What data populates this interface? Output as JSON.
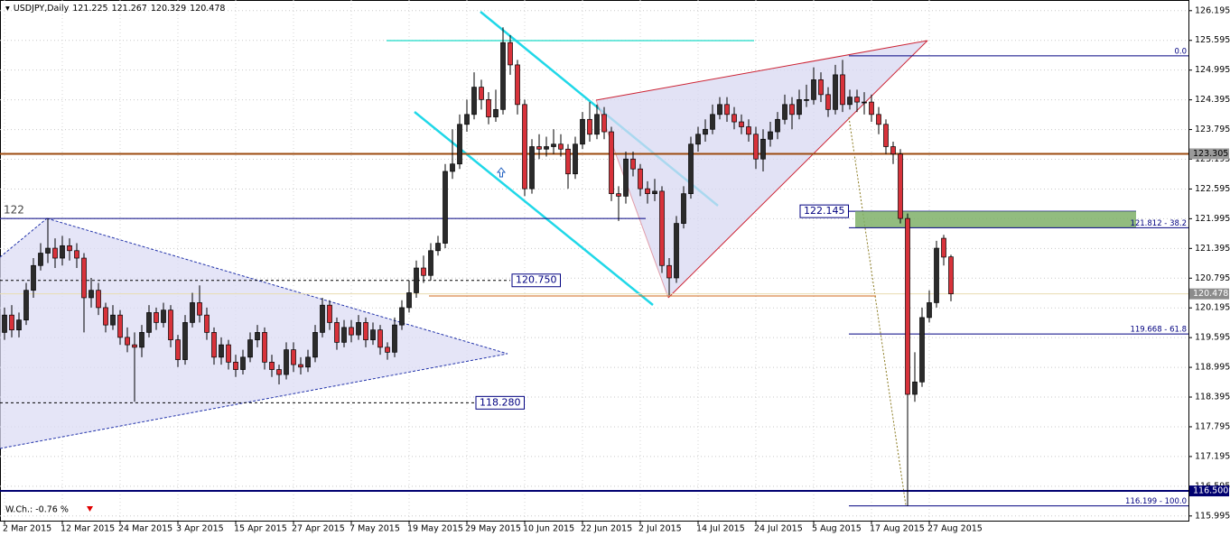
{
  "chart_data": {
    "type": "candlestick",
    "title": "USDJPY,Daily",
    "change_label": "W.Ch.: -0.76 %",
    "categories": [
      "2 Mar 2015",
      null,
      null,
      null,
      null,
      null,
      null,
      null,
      "12 Mar 2015",
      null,
      null,
      null,
      null,
      null,
      null,
      null,
      "24 Mar 2015",
      null,
      null,
      null,
      null,
      null,
      null,
      null,
      "3 Apr 2015",
      null,
      null,
      null,
      null,
      null,
      null,
      null,
      "15 Apr 2015",
      null,
      null,
      null,
      null,
      null,
      null,
      null,
      "27 Apr 2015",
      null,
      null,
      null,
      null,
      null,
      null,
      null,
      "7 May 2015",
      null,
      null,
      null,
      null,
      null,
      null,
      null,
      "19 May 2015",
      null,
      null,
      null,
      null,
      null,
      null,
      null,
      "29 May 2015",
      null,
      null,
      null,
      null,
      null,
      null,
      null,
      "10 Jun 2015",
      null,
      null,
      null,
      null,
      null,
      null,
      null,
      "22 Jun 2015",
      null,
      null,
      null,
      null,
      null,
      null,
      null,
      "2 Jul 2015",
      null,
      null,
      null,
      null,
      null,
      null,
      null,
      "14 Jul 2015",
      null,
      null,
      null,
      null,
      null,
      null,
      null,
      "24 Jul 2015",
      null,
      null,
      null,
      null,
      null,
      null,
      null,
      "5 Aug 2015",
      null,
      null,
      null,
      null,
      null,
      null,
      null,
      "17 Aug 2015",
      null,
      null,
      null,
      null,
      null,
      null,
      null,
      "27 Aug 2015",
      null,
      null,
      null
    ],
    "open": [
      119.7,
      120.05,
      119.75,
      119.95,
      120.55,
      121.05,
      121.3,
      121.4,
      121.2,
      121.45,
      121.35,
      121.2,
      120.4,
      120.55,
      120.2,
      119.85,
      120.05,
      119.6,
      119.45,
      119.4,
      119.7,
      120.1,
      119.9,
      120.15,
      119.55,
      119.15,
      119.9,
      120.3,
      120.05,
      119.7,
      119.2,
      119.45,
      119.1,
      118.95,
      119.2,
      119.55,
      119.7,
      119.1,
      118.95,
      118.85,
      119.35,
      119.05,
      119.0,
      119.2,
      119.7,
      120.25,
      119.9,
      119.5,
      119.8,
      119.65,
      119.9,
      119.55,
      119.75,
      119.4,
      119.3,
      119.85,
      120.2,
      120.5,
      121.0,
      120.85,
      121.35,
      121.5,
      122.95,
      123.1,
      123.9,
      124.1,
      124.65,
      124.4,
      124.05,
      124.2,
      125.55,
      125.1,
      124.3,
      122.6,
      123.45,
      123.4,
      123.45,
      123.5,
      123.4,
      122.9,
      123.5,
      124.0,
      123.7,
      124.1,
      123.75,
      122.5,
      122.45,
      123.2,
      123.0,
      122.6,
      122.5,
      122.55,
      121.05,
      120.8,
      121.9,
      122.5,
      123.5,
      123.7,
      123.8,
      124.1,
      124.3,
      124.1,
      123.95,
      123.85,
      123.7,
      123.2,
      123.6,
      123.75,
      124.0,
      124.3,
      124.1,
      124.4,
      124.4,
      124.8,
      124.5,
      124.2,
      124.9,
      124.3,
      124.45,
      124.35,
      124.35,
      124.1,
      123.9,
      123.45,
      123.3,
      122.0,
      118.45,
      118.7,
      120.0,
      120.3,
      121.6,
      121.225
    ],
    "high": [
      120.2,
      120.25,
      120.1,
      120.7,
      121.2,
      121.5,
      122.0,
      121.6,
      121.65,
      121.6,
      121.5,
      121.3,
      120.8,
      120.7,
      120.3,
      120.25,
      120.15,
      119.8,
      119.7,
      119.85,
      120.25,
      120.2,
      120.3,
      120.25,
      119.65,
      120.05,
      120.5,
      120.65,
      120.2,
      119.8,
      119.6,
      119.55,
      119.25,
      119.35,
      119.7,
      119.85,
      119.8,
      119.25,
      119.05,
      119.5,
      119.5,
      119.2,
      119.35,
      119.85,
      120.4,
      120.35,
      120.0,
      119.95,
      119.95,
      120.05,
      120.0,
      119.9,
      119.85,
      119.5,
      120.0,
      120.35,
      120.75,
      121.15,
      121.25,
      121.5,
      121.65,
      123.1,
      123.8,
      124.1,
      124.4,
      124.95,
      124.8,
      124.55,
      124.6,
      125.86,
      125.7,
      125.2,
      124.4,
      123.6,
      123.7,
      123.65,
      123.8,
      123.7,
      123.5,
      123.65,
      124.15,
      124.35,
      124.3,
      124.25,
      123.85,
      122.65,
      123.35,
      123.35,
      123.1,
      122.75,
      122.8,
      122.65,
      121.2,
      122.05,
      122.65,
      123.65,
      123.85,
      124.0,
      124.3,
      124.45,
      124.45,
      124.25,
      124.1,
      124.0,
      123.85,
      123.8,
      123.95,
      124.15,
      124.5,
      124.45,
      124.6,
      124.7,
      125.05,
      124.95,
      124.65,
      125.1,
      125.2,
      124.6,
      124.6,
      124.55,
      124.5,
      124.25,
      124.0,
      123.55,
      123.4,
      122.1,
      119.3,
      120.2,
      120.55,
      121.55,
      121.67,
      121.267
    ],
    "low": [
      119.55,
      119.6,
      119.6,
      119.85,
      120.4,
      120.95,
      121.1,
      121.0,
      121.05,
      121.15,
      121.0,
      119.7,
      120.2,
      120.05,
      119.7,
      119.75,
      119.45,
      119.3,
      118.3,
      119.2,
      119.6,
      119.75,
      119.8,
      119.4,
      119.0,
      119.05,
      119.8,
      119.9,
      119.55,
      119.05,
      119.05,
      118.95,
      118.8,
      118.85,
      119.1,
      119.4,
      118.95,
      118.8,
      118.65,
      118.75,
      118.9,
      118.85,
      118.9,
      119.1,
      119.6,
      119.75,
      119.35,
      119.4,
      119.5,
      119.55,
      119.4,
      119.45,
      119.25,
      119.15,
      119.2,
      119.75,
      120.1,
      120.4,
      120.7,
      120.75,
      121.25,
      121.4,
      122.8,
      123.0,
      123.75,
      124.0,
      124.2,
      123.9,
      123.95,
      124.1,
      124.9,
      124.1,
      122.45,
      122.5,
      123.2,
      123.25,
      123.3,
      123.25,
      122.6,
      122.8,
      123.4,
      123.55,
      123.6,
      123.6,
      122.35,
      121.95,
      122.3,
      122.85,
      122.45,
      122.3,
      122.35,
      120.9,
      120.45,
      120.7,
      121.8,
      122.4,
      123.35,
      123.55,
      123.7,
      124.0,
      123.95,
      123.8,
      123.7,
      123.55,
      123.0,
      122.95,
      123.45,
      123.6,
      123.9,
      123.8,
      124.0,
      124.25,
      124.3,
      124.35,
      124.05,
      124.1,
      124.15,
      124.2,
      124.15,
      124.1,
      123.95,
      123.7,
      123.3,
      123.1,
      121.9,
      116.2,
      118.3,
      118.6,
      119.9,
      120.2,
      121.05,
      120.329
    ],
    "close": [
      120.05,
      119.75,
      119.95,
      120.55,
      121.05,
      121.3,
      121.4,
      121.2,
      121.45,
      121.35,
      121.2,
      120.4,
      120.55,
      120.2,
      119.85,
      120.05,
      119.6,
      119.45,
      119.4,
      119.7,
      120.1,
      119.9,
      120.15,
      119.55,
      119.15,
      119.9,
      120.3,
      120.05,
      119.7,
      119.2,
      119.45,
      119.1,
      118.95,
      119.2,
      119.55,
      119.7,
      119.1,
      118.95,
      118.85,
      119.35,
      119.05,
      119.0,
      119.2,
      119.7,
      120.25,
      119.9,
      119.5,
      119.8,
      119.65,
      119.9,
      119.55,
      119.75,
      119.4,
      119.3,
      119.85,
      120.2,
      120.5,
      121.0,
      120.85,
      121.35,
      121.5,
      122.95,
      123.1,
      123.9,
      124.1,
      124.65,
      124.4,
      124.05,
      124.2,
      125.55,
      125.1,
      124.3,
      122.6,
      123.45,
      123.4,
      123.45,
      123.5,
      123.4,
      122.9,
      123.5,
      124.0,
      123.7,
      124.1,
      123.75,
      122.5,
      122.45,
      123.2,
      123.0,
      122.6,
      122.5,
      122.55,
      121.05,
      120.8,
      121.9,
      122.5,
      123.5,
      123.7,
      123.8,
      124.1,
      124.3,
      124.1,
      123.95,
      123.85,
      123.7,
      123.2,
      123.6,
      123.75,
      124.0,
      124.3,
      124.1,
      124.4,
      124.4,
      124.8,
      124.5,
      124.2,
      124.9,
      124.3,
      124.45,
      124.35,
      124.35,
      124.1,
      123.9,
      123.45,
      123.3,
      122.0,
      118.45,
      118.7,
      120.0,
      120.3,
      121.4,
      121.22,
      120.478
    ],
    "up_color": "#2b2b2b",
    "down_color": "#d8323a",
    "ylim": [
      115.9,
      126.41
    ],
    "yticks": [
      115.995,
      116.595,
      117.195,
      117.795,
      118.395,
      118.995,
      119.595,
      120.195,
      120.795,
      121.395,
      121.995,
      122.595,
      123.195,
      123.795,
      124.395,
      124.995,
      125.595,
      126.195
    ],
    "grid": true,
    "price_lines": [
      {
        "value": 123.305,
        "label": "123.305",
        "color": "#9c4a0e"
      },
      {
        "value": 116.5,
        "label": "116.500",
        "color": "#000070"
      }
    ],
    "marker_lines": [
      {
        "value": 122,
        "label": "122"
      },
      {
        "value": 120.75,
        "label": "120.750"
      },
      {
        "value": 118.28,
        "label": "118.280"
      },
      {
        "value": 122.145,
        "label": "122.145"
      }
    ],
    "fib_levels": [
      {
        "value": 125.282,
        "label": "0.0"
      },
      {
        "value": 121.812,
        "label": "121.812 - 38.2"
      },
      {
        "value": 119.668,
        "label": "119.668 - 61.8"
      },
      {
        "value": 116.199,
        "label": "116.199 - 100.0"
      }
    ]
  }
}
